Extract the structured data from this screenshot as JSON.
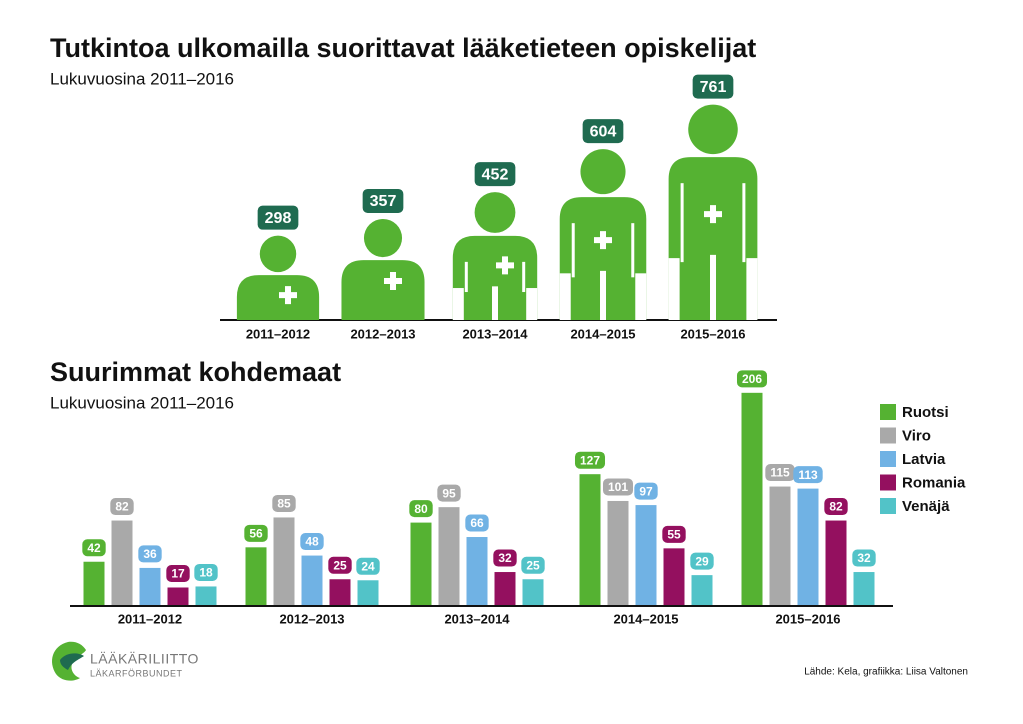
{
  "chart_data": [
    {
      "type": "pictograph",
      "title": "Tutkintoa ulkomailla suorittavat lääketieteen opiskelijat",
      "subtitle": "Lukuvuosina 2011–2016",
      "categories": [
        "2011–2012",
        "2012–2013",
        "2013–2014",
        "2014–2015",
        "2015–2016"
      ],
      "values": [
        298,
        357,
        452,
        604,
        761
      ],
      "color": "#55b232",
      "label_color": "#1f6b50"
    },
    {
      "type": "grouped-bar",
      "title": "Suurimmat kohdemaat",
      "subtitle": "Lukuvuosina 2011–2016",
      "categories": [
        "2011–2012",
        "2012–2013",
        "2013–2014",
        "2014–2015",
        "2015–2016"
      ],
      "series": [
        {
          "name": "Ruotsi",
          "color": "#55b232",
          "values": [
            42,
            56,
            80,
            127,
            206
          ]
        },
        {
          "name": "Viro",
          "color": "#a9a9a9",
          "values": [
            82,
            85,
            95,
            101,
            115
          ]
        },
        {
          "name": "Latvia",
          "color": "#70b2e4",
          "values": [
            36,
            48,
            66,
            97,
            113
          ]
        },
        {
          "name": "Romania",
          "color": "#94105f",
          "values": [
            17,
            25,
            32,
            55,
            82
          ]
        },
        {
          "name": "Venäjä",
          "color": "#52c3c8",
          "values": [
            18,
            24,
            25,
            29,
            32
          ]
        }
      ],
      "legend": "right"
    }
  ],
  "footer": {
    "logo_title": "LÄÄKÄRILIITTO",
    "logo_subtitle": "LÄKARFÖRBUNDET",
    "source": "Lähde: Kela, grafiikka: Liisa Valtonen"
  }
}
